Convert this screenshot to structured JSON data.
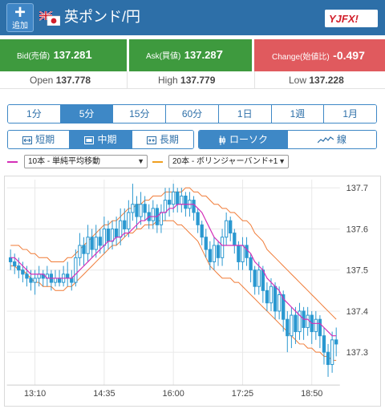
{
  "header": {
    "add_icon": "plus-icon",
    "add_label": "追加",
    "pair_name": "英ポンド/円",
    "flags": "gb-jp-flags-icon",
    "logo": "YJFX!"
  },
  "quotes": {
    "bid": {
      "label": "Bid(売値)",
      "value_main": "137.28",
      "value_last": "1"
    },
    "ask": {
      "label": "Ask(買値)",
      "value_main": "137.28",
      "value_last": "7"
    },
    "change": {
      "label": "Change(始値比)",
      "value": "-0.497"
    }
  },
  "ohl": {
    "open_label": "Open",
    "open_main": "137.77",
    "open_last": "8",
    "high_label": "High",
    "high_main": "137.77",
    "high_last": "9",
    "low_label": "Low",
    "low_main": "137.22",
    "low_last": "8"
  },
  "timeframes": {
    "items": [
      "1分",
      "5分",
      "15分",
      "60分",
      "1日",
      "1週",
      "1月"
    ],
    "active": "5分"
  },
  "periods": {
    "short": "短期",
    "mid": "中期",
    "long": "長期",
    "active": "中期"
  },
  "chart_types": {
    "candle": "ローソク",
    "line": "線",
    "active": "ローソク"
  },
  "indicators": {
    "sma": {
      "label": "10本 - 単純平均移動",
      "color": "#d42fb8"
    },
    "bb": {
      "label": "20本 - ボリンジャーバンド+1",
      "color": "#f0a020"
    }
  },
  "colors": {
    "up": "#2a98d0",
    "down": "#2a98d0",
    "upper_band": "#f07a35",
    "grid": "#e8e8e8"
  },
  "chart_data": {
    "type": "candlestick",
    "ylim": [
      137.22,
      137.72
    ],
    "y_ticks": [
      "137.7",
      "137.6",
      "137.5",
      "137.4",
      "137.3"
    ],
    "y_tick_values": [
      137.7,
      137.6,
      137.5,
      137.4,
      137.3
    ],
    "x_tick_labels": [
      "13:10",
      "14:35",
      "16:00",
      "17:25",
      "18:50"
    ],
    "x_tick_index": [
      6,
      23,
      40,
      57,
      74
    ],
    "candles": [
      [
        137.53,
        137.52,
        137.55,
        137.5
      ],
      [
        137.52,
        137.51,
        137.54,
        137.49
      ],
      [
        137.51,
        137.5,
        137.53,
        137.48
      ],
      [
        137.5,
        137.49,
        137.52,
        137.47
      ],
      [
        137.49,
        137.48,
        137.51,
        137.46
      ],
      [
        137.48,
        137.47,
        137.5,
        137.45
      ],
      [
        137.47,
        137.48,
        137.5,
        137.44
      ],
      [
        137.48,
        137.49,
        137.51,
        137.46
      ],
      [
        137.49,
        137.48,
        137.5,
        137.46
      ],
      [
        137.48,
        137.49,
        137.51,
        137.46
      ],
      [
        137.49,
        137.47,
        137.5,
        137.45
      ],
      [
        137.47,
        137.48,
        137.5,
        137.46
      ],
      [
        137.48,
        137.47,
        137.5,
        137.46
      ],
      [
        137.47,
        137.49,
        137.51,
        137.46
      ],
      [
        137.49,
        137.48,
        137.52,
        137.46
      ],
      [
        137.48,
        137.47,
        137.5,
        137.45
      ],
      [
        137.47,
        137.53,
        137.55,
        137.46
      ],
      [
        137.53,
        137.56,
        137.59,
        137.51
      ],
      [
        137.56,
        137.54,
        137.58,
        137.51
      ],
      [
        137.54,
        137.58,
        137.61,
        137.52
      ],
      [
        137.58,
        137.55,
        137.6,
        137.53
      ],
      [
        137.55,
        137.58,
        137.61,
        137.53
      ],
      [
        137.58,
        137.56,
        137.6,
        137.54
      ],
      [
        137.56,
        137.6,
        137.63,
        137.54
      ],
      [
        137.6,
        137.57,
        137.62,
        137.55
      ],
      [
        137.57,
        137.6,
        137.62,
        137.55
      ],
      [
        137.6,
        137.58,
        137.63,
        137.56
      ],
      [
        137.58,
        137.62,
        137.65,
        137.56
      ],
      [
        137.62,
        137.6,
        137.65,
        137.58
      ],
      [
        137.6,
        137.64,
        137.67,
        137.58
      ],
      [
        137.64,
        137.66,
        137.71,
        137.62
      ],
      [
        137.66,
        137.63,
        137.68,
        137.6
      ],
      [
        137.63,
        137.66,
        137.69,
        137.61
      ],
      [
        137.66,
        137.64,
        137.68,
        137.62
      ],
      [
        137.64,
        137.62,
        137.66,
        137.6
      ],
      [
        137.62,
        137.65,
        137.67,
        137.6
      ],
      [
        137.65,
        137.61,
        137.66,
        137.59
      ],
      [
        137.61,
        137.64,
        137.66,
        137.59
      ],
      [
        137.64,
        137.67,
        137.7,
        137.62
      ],
      [
        137.67,
        137.66,
        137.7,
        137.63
      ],
      [
        137.66,
        137.69,
        137.71,
        137.64
      ],
      [
        137.69,
        137.66,
        137.7,
        137.64
      ],
      [
        137.66,
        137.68,
        137.7,
        137.64
      ],
      [
        137.68,
        137.65,
        137.69,
        137.63
      ],
      [
        137.65,
        137.67,
        137.69,
        137.63
      ],
      [
        137.67,
        137.64,
        137.68,
        137.62
      ],
      [
        137.64,
        137.61,
        137.65,
        137.59
      ],
      [
        137.61,
        137.58,
        137.62,
        137.56
      ],
      [
        137.58,
        137.55,
        137.6,
        137.53
      ],
      [
        137.55,
        137.52,
        137.57,
        137.5
      ],
      [
        137.52,
        137.56,
        137.58,
        137.5
      ],
      [
        137.56,
        137.53,
        137.57,
        137.51
      ],
      [
        137.53,
        137.58,
        137.6,
        137.51
      ],
      [
        137.58,
        137.62,
        137.64,
        137.56
      ],
      [
        137.62,
        137.59,
        137.63,
        137.57
      ],
      [
        137.59,
        137.56,
        137.6,
        137.54
      ],
      [
        137.56,
        137.52,
        137.57,
        137.5
      ],
      [
        137.52,
        137.56,
        137.58,
        137.5
      ],
      [
        137.56,
        137.53,
        137.58,
        137.51
      ],
      [
        137.53,
        137.5,
        137.54,
        137.47
      ],
      [
        137.5,
        137.46,
        137.51,
        137.44
      ],
      [
        137.46,
        137.5,
        137.52,
        137.44
      ],
      [
        137.5,
        137.45,
        137.51,
        137.42
      ],
      [
        137.45,
        137.42,
        137.47,
        137.4
      ],
      [
        137.42,
        137.46,
        137.48,
        137.4
      ],
      [
        137.46,
        137.4,
        137.47,
        137.38
      ],
      [
        137.4,
        137.44,
        137.46,
        137.38
      ],
      [
        137.44,
        137.38,
        137.45,
        137.35
      ],
      [
        137.38,
        137.34,
        137.4,
        137.3
      ],
      [
        137.34,
        137.39,
        137.41,
        137.31
      ],
      [
        137.39,
        137.35,
        137.41,
        137.32
      ],
      [
        137.35,
        137.4,
        137.42,
        137.33
      ],
      [
        137.4,
        137.36,
        137.41,
        137.33
      ],
      [
        137.36,
        137.39,
        137.41,
        137.34
      ],
      [
        137.39,
        137.35,
        137.4,
        137.32
      ],
      [
        137.35,
        137.38,
        137.4,
        137.33
      ],
      [
        137.38,
        137.34,
        137.39,
        137.31
      ],
      [
        137.34,
        137.3,
        137.36,
        137.27
      ],
      [
        137.3,
        137.27,
        137.32,
        137.24
      ],
      [
        137.27,
        137.33,
        137.35,
        137.25
      ],
      [
        137.33,
        137.32,
        137.36,
        137.29
      ]
    ],
    "sma": [
      137.53,
      137.53,
      137.52,
      137.51,
      137.5,
      137.49,
      137.49,
      137.49,
      137.49,
      137.48,
      137.48,
      137.48,
      137.48,
      137.48,
      137.48,
      137.48,
      137.49,
      137.5,
      137.51,
      137.52,
      137.53,
      137.54,
      137.55,
      137.56,
      137.57,
      137.57,
      137.58,
      137.58,
      137.59,
      137.59,
      137.6,
      137.61,
      137.62,
      137.62,
      137.63,
      137.63,
      137.63,
      137.64,
      137.64,
      137.65,
      137.65,
      137.66,
      137.66,
      137.66,
      137.66,
      137.66,
      137.65,
      137.64,
      137.62,
      137.6,
      137.58,
      137.57,
      137.56,
      137.56,
      137.56,
      137.56,
      137.56,
      137.56,
      137.55,
      137.54,
      137.52,
      137.51,
      137.5,
      137.48,
      137.47,
      137.46,
      137.45,
      137.43,
      137.42,
      137.41,
      137.4,
      137.39,
      137.38,
      137.38,
      137.37,
      137.37,
      137.37,
      137.36,
      137.35,
      137.34,
      137.34
    ],
    "upper_band": [
      137.56,
      137.56,
      137.56,
      137.55,
      137.55,
      137.54,
      137.54,
      137.53,
      137.53,
      137.53,
      137.52,
      137.52,
      137.52,
      137.52,
      137.53,
      137.53,
      137.54,
      137.55,
      137.56,
      137.57,
      137.58,
      137.59,
      137.6,
      137.61,
      137.61,
      137.62,
      137.62,
      137.63,
      137.64,
      137.65,
      137.65,
      137.66,
      137.66,
      137.67,
      137.67,
      137.68,
      137.68,
      137.68,
      137.69,
      137.69,
      137.69,
      137.69,
      137.69,
      137.7,
      137.7,
      137.69,
      137.69,
      137.68,
      137.68,
      137.67,
      137.66,
      137.66,
      137.65,
      137.65,
      137.64,
      137.64,
      137.63,
      137.62,
      137.62,
      137.61,
      137.59,
      137.58,
      137.57,
      137.55,
      137.54,
      137.53,
      137.52,
      137.51,
      137.5,
      137.49,
      137.48,
      137.47,
      137.46,
      137.45,
      137.44,
      137.43,
      137.42,
      137.41,
      137.4,
      137.39,
      137.38
    ],
    "lower_band": [
      137.51,
      137.51,
      137.5,
      137.5,
      137.49,
      137.48,
      137.47,
      137.47,
      137.46,
      137.46,
      137.46,
      137.45,
      137.45,
      137.45,
      137.46,
      137.46,
      137.47,
      137.48,
      137.49,
      137.5,
      137.51,
      137.52,
      137.53,
      137.54,
      137.55,
      137.56,
      137.56,
      137.57,
      137.58,
      137.59,
      137.59,
      137.6,
      137.6,
      137.61,
      137.61,
      137.61,
      137.62,
      137.62,
      137.62,
      137.62,
      137.62,
      137.61,
      137.61,
      137.6,
      137.59,
      137.58,
      137.57,
      137.55,
      137.53,
      137.51,
      137.5,
      137.49,
      137.48,
      137.48,
      137.48,
      137.47,
      137.47,
      137.46,
      137.45,
      137.44,
      137.43,
      137.42,
      137.41,
      137.4,
      137.39,
      137.38,
      137.37,
      137.36,
      137.35,
      137.34,
      137.33,
      137.32,
      137.32,
      137.31,
      137.31,
      137.3,
      137.3,
      137.29,
      137.29,
      137.28,
      137.28
    ]
  }
}
